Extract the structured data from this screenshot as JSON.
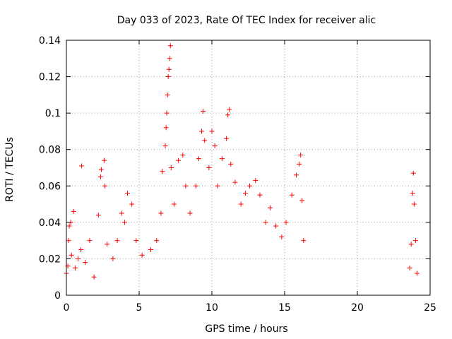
{
  "chart_data": {
    "type": "scatter",
    "title": "Day 033 of 2023, Rate Of TEC Index for receiver alic",
    "xlabel": "GPS time / hours",
    "ylabel": "ROTI / TECUs",
    "xlim": [
      0,
      25
    ],
    "ylim": [
      0,
      0.14
    ],
    "xticks": [
      "0",
      "5",
      "10",
      "15",
      "20",
      "25"
    ],
    "yticks": [
      "0",
      "0.02",
      "0.04",
      "0.06",
      "0.08",
      "0.1",
      "0.12",
      "0.14"
    ],
    "grid": true,
    "marker": "+",
    "color": "#ff0000",
    "series": [
      {
        "points": [
          [
            0.0,
            0.012
          ],
          [
            0.1,
            0.016
          ],
          [
            0.15,
            0.03
          ],
          [
            0.2,
            0.038
          ],
          [
            0.3,
            0.04
          ],
          [
            0.35,
            0.022
          ],
          [
            0.5,
            0.046
          ],
          [
            0.6,
            0.015
          ],
          [
            0.8,
            0.02
          ],
          [
            1.0,
            0.025
          ],
          [
            1.05,
            0.071
          ],
          [
            1.3,
            0.018
          ],
          [
            1.6,
            0.03
          ],
          [
            1.9,
            0.01
          ],
          [
            2.2,
            0.044
          ],
          [
            2.35,
            0.065
          ],
          [
            2.4,
            0.069
          ],
          [
            2.6,
            0.074
          ],
          [
            2.65,
            0.06
          ],
          [
            2.8,
            0.028
          ],
          [
            3.2,
            0.02
          ],
          [
            3.5,
            0.03
          ],
          [
            3.8,
            0.045
          ],
          [
            4.0,
            0.04
          ],
          [
            4.2,
            0.056
          ],
          [
            4.5,
            0.05
          ],
          [
            4.8,
            0.03
          ],
          [
            5.2,
            0.022
          ],
          [
            5.8,
            0.025
          ],
          [
            6.2,
            0.03
          ],
          [
            6.5,
            0.045
          ],
          [
            6.6,
            0.068
          ],
          [
            6.8,
            0.082
          ],
          [
            6.85,
            0.092
          ],
          [
            6.9,
            0.1
          ],
          [
            6.95,
            0.11
          ],
          [
            7.0,
            0.12
          ],
          [
            7.05,
            0.124
          ],
          [
            7.1,
            0.13
          ],
          [
            7.15,
            0.137
          ],
          [
            7.2,
            0.07
          ],
          [
            7.4,
            0.05
          ],
          [
            7.7,
            0.074
          ],
          [
            8.0,
            0.077
          ],
          [
            8.2,
            0.06
          ],
          [
            8.5,
            0.045
          ],
          [
            8.9,
            0.06
          ],
          [
            9.1,
            0.075
          ],
          [
            9.3,
            0.09
          ],
          [
            9.4,
            0.101
          ],
          [
            9.5,
            0.085
          ],
          [
            9.8,
            0.07
          ],
          [
            10.0,
            0.09
          ],
          [
            10.2,
            0.082
          ],
          [
            10.4,
            0.06
          ],
          [
            10.7,
            0.075
          ],
          [
            11.0,
            0.086
          ],
          [
            11.1,
            0.099
          ],
          [
            11.2,
            0.102
          ],
          [
            11.3,
            0.072
          ],
          [
            11.6,
            0.062
          ],
          [
            12.0,
            0.05
          ],
          [
            12.3,
            0.056
          ],
          [
            12.6,
            0.06
          ],
          [
            13.0,
            0.063
          ],
          [
            13.3,
            0.055
          ],
          [
            13.7,
            0.04
          ],
          [
            14.0,
            0.048
          ],
          [
            14.4,
            0.038
          ],
          [
            14.8,
            0.032
          ],
          [
            15.1,
            0.04
          ],
          [
            15.5,
            0.055
          ],
          [
            15.8,
            0.066
          ],
          [
            16.0,
            0.072
          ],
          [
            16.1,
            0.077
          ],
          [
            16.2,
            0.052
          ],
          [
            16.3,
            0.03
          ],
          [
            23.6,
            0.015
          ],
          [
            23.7,
            0.028
          ],
          [
            23.8,
            0.056
          ],
          [
            23.85,
            0.067
          ],
          [
            23.9,
            0.05
          ],
          [
            24.0,
            0.03
          ],
          [
            24.1,
            0.012
          ]
        ]
      }
    ]
  }
}
